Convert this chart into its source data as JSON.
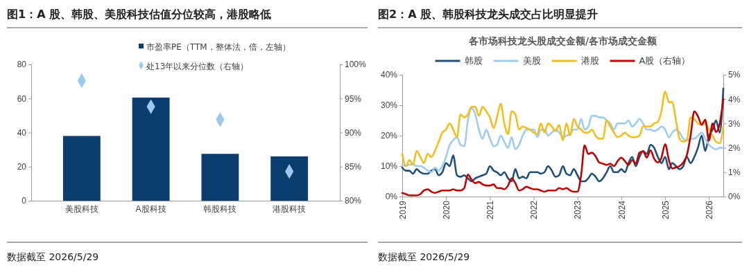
{
  "chart_data": [
    {
      "type": "bar",
      "title": "图1：A 股、韩股、美股科技估值分位较高，港股略低",
      "categories": [
        "美股科技",
        "A股科技",
        "韩股科技",
        "港股科技"
      ],
      "ylim": [
        0,
        80
      ],
      "yticks": [
        0,
        20,
        40,
        60,
        80
      ],
      "y2lim": [
        80,
        100
      ],
      "y2ticks": [
        {
          "value": 80,
          "label": "80%"
        },
        {
          "value": 85,
          "label": "85%"
        },
        {
          "value": 90,
          "label": "90%"
        },
        {
          "value": 95,
          "label": "95%"
        },
        {
          "value": 100,
          "label": "100%"
        }
      ],
      "legend": "top",
      "grid": false,
      "annotations": [
        "数据截至 2026/5/29"
      ],
      "series": [
        {
          "name": "市盈率PE（TTM，整体法，倍，左轴）",
          "type": "bar",
          "color": "#0b3d6f",
          "values": [
            38,
            60.5,
            27.5,
            26
          ]
        },
        {
          "name": "处13年以来分位数（右轴）",
          "type": "scatter",
          "axis": "y2",
          "marker": "diamond",
          "color": "#9dc8ef",
          "values": [
            97.6,
            93.8,
            91.9,
            84.3
          ]
        }
      ]
    },
    {
      "type": "line",
      "title": "图2：A 股、韩股科技龙头成交占比明显提升",
      "subtitle": "各市场科技龙头股成交金额/各市场成交金额",
      "legend": "top",
      "grid": false,
      "marker": "none",
      "line_style": "solid",
      "annotations": [
        "数据截至 2026/5/29"
      ],
      "x": [
        "2019-01",
        "2019-02",
        "2019-03",
        "2019-04",
        "2019-05",
        "2019-06",
        "2019-07",
        "2019-08",
        "2019-09",
        "2019-10",
        "2019-11",
        "2019-12",
        "2020-01",
        "2020-02",
        "2020-03",
        "2020-04",
        "2020-05",
        "2020-06",
        "2020-07",
        "2020-08",
        "2020-09",
        "2020-10",
        "2020-11",
        "2020-12",
        "2021-01",
        "2021-02",
        "2021-03",
        "2021-04",
        "2021-05",
        "2021-06",
        "2021-07",
        "2021-08",
        "2021-09",
        "2021-10",
        "2021-11",
        "2021-12",
        "2022-01",
        "2022-02",
        "2022-03",
        "2022-04",
        "2022-05",
        "2022-06",
        "2022-07",
        "2022-08",
        "2022-09",
        "2022-10",
        "2022-11",
        "2022-12",
        "2023-01",
        "2023-02",
        "2023-03",
        "2023-04",
        "2023-05",
        "2023-06",
        "2023-07",
        "2023-08",
        "2023-09",
        "2023-10",
        "2023-11",
        "2023-12",
        "2024-01",
        "2024-02",
        "2024-03",
        "2024-04",
        "2024-05",
        "2024-06",
        "2024-07",
        "2024-08",
        "2024-09",
        "2024-10",
        "2024-11",
        "2024-12",
        "2025-01",
        "2025-02",
        "2025-03",
        "2025-04",
        "2025-05",
        "2025-06",
        "2025-07",
        "2025-08",
        "2025-09",
        "2025-10",
        "2025-11",
        "2025-12",
        "2026-01",
        "2026-02",
        "2026-03",
        "2026-04",
        "2026-05"
      ],
      "xlim": [
        "2019-01",
        "2026-05"
      ],
      "xticks": [
        {
          "value": "2019-01",
          "label": "2019"
        },
        {
          "value": "2020-01",
          "label": "2020"
        },
        {
          "value": "2021-01",
          "label": "2021"
        },
        {
          "value": "2022-01",
          "label": "2022"
        },
        {
          "value": "2023-01",
          "label": "2023"
        },
        {
          "value": "2024-01",
          "label": "2024"
        },
        {
          "value": "2025-01",
          "label": "2025"
        },
        {
          "value": "2026-01",
          "label": "2026"
        }
      ],
      "ylim": [
        0,
        40
      ],
      "yticks": [
        {
          "value": 0,
          "label": "0%"
        },
        {
          "value": 10,
          "label": "10%"
        },
        {
          "value": 20,
          "label": "20%"
        },
        {
          "value": 30,
          "label": "30%"
        },
        {
          "value": 40,
          "label": "40%"
        }
      ],
      "y2lim": [
        0,
        5
      ],
      "y2ticks": [
        {
          "value": 0,
          "label": "0%"
        },
        {
          "value": 1,
          "label": "1%"
        },
        {
          "value": 2,
          "label": "2%"
        },
        {
          "value": 3,
          "label": "3%"
        },
        {
          "value": 4,
          "label": "4%"
        },
        {
          "value": 5,
          "label": "5%"
        }
      ],
      "series": [
        {
          "name": "韩股",
          "color": "#1f4e79",
          "values": [
            9.5,
            8.5,
            8.5,
            7.5,
            9,
            8,
            7.5,
            7.5,
            8.5,
            9,
            7,
            8,
            11,
            10,
            13.5,
            7,
            6.5,
            7,
            6,
            5,
            6,
            6.5,
            7,
            7.5,
            10,
            8.5,
            8,
            7,
            8,
            6,
            5,
            9,
            6,
            6.5,
            6,
            8,
            8,
            8,
            7.5,
            8,
            10,
            8.5,
            6.5,
            7,
            10,
            7.5,
            7,
            9,
            7,
            5,
            5,
            6,
            7.5,
            6.5,
            5,
            6,
            8,
            10,
            8,
            8,
            9,
            8,
            11,
            13,
            10,
            13,
            15,
            14,
            17,
            16,
            13,
            11,
            13,
            9,
            11,
            10,
            9,
            10,
            13,
            11,
            13,
            16,
            20,
            15,
            20,
            22,
            25,
            21,
            35.5
          ]
        },
        {
          "name": "美股",
          "color": "#9ecbf0",
          "values": [
            10.5,
            10,
            10.5,
            10.5,
            10,
            10,
            9.5,
            8.5,
            8,
            9.5,
            8.5,
            10,
            13,
            17,
            18.5,
            19.5,
            17,
            16.5,
            25,
            29,
            27,
            22,
            19,
            22,
            19,
            16.5,
            17,
            20,
            18,
            16,
            19.5,
            15.5,
            17,
            20,
            22,
            22,
            22,
            19.5,
            22,
            22,
            20,
            21,
            22,
            21,
            19.5,
            20,
            20.5,
            22,
            22,
            25.5,
            22,
            23,
            26.5,
            26.5,
            26,
            26,
            25,
            24,
            22,
            24,
            24,
            24,
            25,
            23,
            24,
            25.5,
            24,
            22,
            22,
            21.5,
            22,
            23,
            22,
            19.5,
            21,
            22,
            21,
            19,
            18.5,
            19,
            19,
            20,
            21,
            19,
            17,
            16,
            15.5,
            16,
            16
          ]
        },
        {
          "name": "港股",
          "color": "#f3bd1c",
          "values": [
            14,
            10,
            12,
            10.5,
            15,
            13,
            11,
            14,
            13,
            15,
            18,
            21,
            22,
            24,
            22,
            19.5,
            27,
            26,
            27,
            29.5,
            29.5,
            26.5,
            29.5,
            28,
            26,
            22.5,
            26,
            30.5,
            24,
            20.5,
            28,
            27,
            22,
            23,
            22.5,
            22,
            21,
            20.5,
            24,
            21,
            24,
            23,
            21.5,
            23.5,
            18.5,
            24,
            20,
            25.5,
            23,
            22,
            21,
            21,
            22,
            20,
            19,
            19,
            25,
            23,
            21,
            19.5,
            20,
            21,
            20,
            19.5,
            19.5,
            20,
            23,
            23,
            23,
            24,
            24.5,
            28,
            34.5,
            31,
            31,
            25,
            19,
            18,
            18.5,
            26,
            25.5,
            24,
            23.5,
            24,
            22,
            20,
            18,
            17.5,
            23
          ]
        },
        {
          "name": "A股（右轴）",
          "color": "#c00000",
          "axis": "y2",
          "values": [
            0.15,
            0.1,
            0.05,
            0.05,
            0.05,
            0.1,
            0.25,
            0.3,
            0.2,
            0.15,
            0.2,
            0.25,
            0.25,
            0.25,
            0.3,
            0.25,
            0.25,
            0.35,
            0.9,
            0.7,
            0.55,
            0.6,
            0.5,
            0.45,
            0.45,
            0.5,
            0.35,
            0.35,
            0.3,
            0.45,
            0.75,
            0.55,
            0.25,
            0.3,
            0.4,
            0.35,
            0.3,
            0.3,
            0.25,
            0.2,
            0.25,
            0.25,
            0.25,
            0.35,
            0.3,
            0.35,
            0.25,
            0.2,
            0.2,
            0.9,
            2.1,
            1.75,
            1.8,
            1.65,
            1.4,
            1.35,
            1.3,
            1.35,
            1.25,
            1.45,
            1.6,
            1.45,
            1.3,
            1.5,
            1.35,
            1.8,
            1.85,
            1.6,
            1.9,
            1.55,
            1.4,
            1.6,
            2.15,
            1.5,
            1.15,
            1.2,
            1.25,
            1.4,
            1.7,
            2.5,
            3.5,
            3.3,
            2.95,
            3.15,
            2.3,
            3,
            2.65,
            3,
            4
          ]
        }
      ]
    }
  ]
}
